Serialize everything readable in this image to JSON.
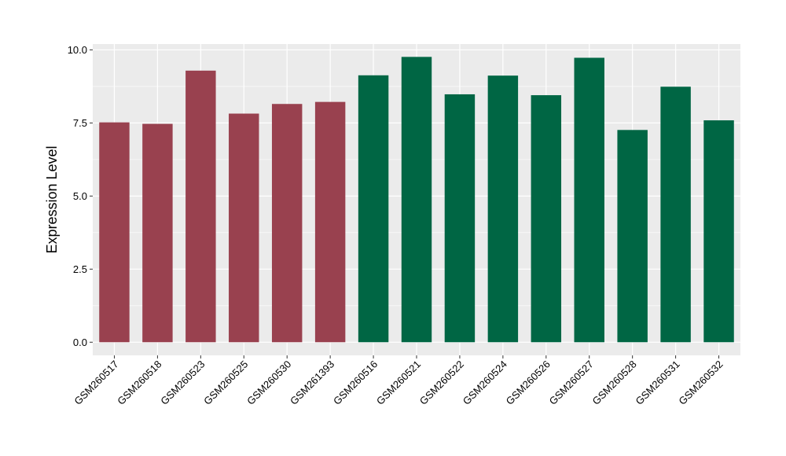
{
  "chart_data": {
    "type": "bar",
    "title": "",
    "xlabel": "",
    "ylabel": "Expression Level",
    "ylim": [
      -0.45,
      10.2
    ],
    "yticks": [
      0.0,
      2.5,
      5.0,
      7.5,
      10.0
    ],
    "ytick_labels": [
      "0.0",
      "2.5",
      "5.0",
      "7.5",
      "10.0"
    ],
    "grid": true,
    "legend": "none",
    "background_color": "#EBEBEB",
    "gridline_color": "#FFFFFF",
    "categories": [
      "GSM260517",
      "GSM260518",
      "GSM260523",
      "GSM260525",
      "GSM260530",
      "GSM261393",
      "GSM260516",
      "GSM260521",
      "GSM260522",
      "GSM260524",
      "GSM260526",
      "GSM260527",
      "GSM260528",
      "GSM260531",
      "GSM260532"
    ],
    "values": [
      7.52,
      7.47,
      9.29,
      7.82,
      8.15,
      8.22,
      9.13,
      9.76,
      8.48,
      9.12,
      8.45,
      9.73,
      7.26,
      8.74,
      7.59
    ],
    "groups": [
      "a",
      "a",
      "a",
      "a",
      "a",
      "a",
      "b",
      "b",
      "b",
      "b",
      "b",
      "b",
      "b",
      "b",
      "b"
    ],
    "group_colors": {
      "a": "#99414F",
      "b": "#006644"
    }
  }
}
